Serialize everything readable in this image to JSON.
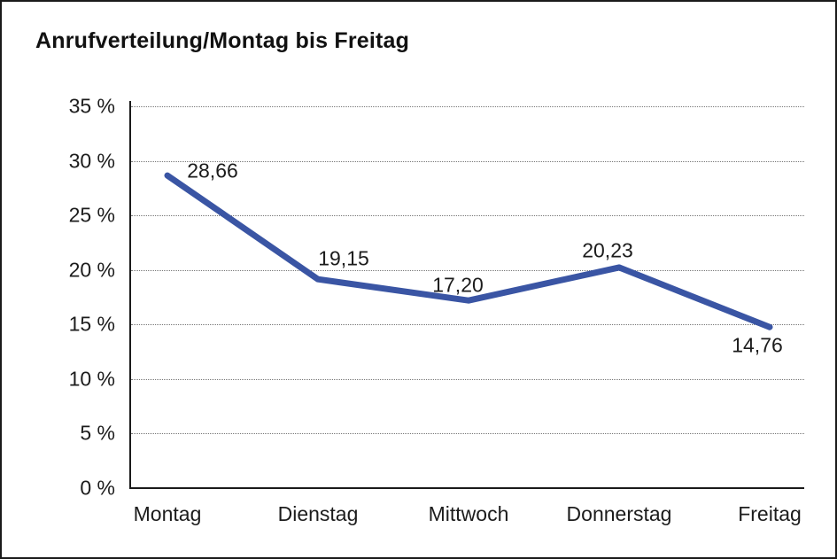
{
  "chart_data": {
    "type": "line",
    "title": "Anrufverteilung/Montag bis Freitag",
    "categories": [
      "Montag",
      "Dienstag",
      "Mittwoch",
      "Donnerstag",
      "Freitag"
    ],
    "series": [
      {
        "name": "Anrufverteilung",
        "values": [
          28.66,
          19.15,
          17.2,
          20.23,
          14.76
        ],
        "value_labels": [
          "28,66",
          "19,15",
          "17,20",
          "20,23",
          "14,76"
        ]
      }
    ],
    "xlabel": "",
    "ylabel": "",
    "ylim": [
      0,
      35
    ],
    "y_ticks": [
      {
        "label": "35 %",
        "value": 35
      },
      {
        "label": "30 %",
        "value": 30
      },
      {
        "label": "25 %",
        "value": 25
      },
      {
        "label": "20 %",
        "value": 20
      },
      {
        "label": "15 %",
        "value": 15
      },
      {
        "label": "10 %",
        "value": 10
      },
      {
        "label": "5 %",
        "value": 5
      },
      {
        "label": "0 %",
        "value": 0
      }
    ],
    "grid": "horizontal-dotted",
    "legend": "none",
    "line_color": "#3a55a4",
    "axis_color": "#1a1a1a",
    "gridline_color": "#777777",
    "text_color": "#1c1c1c",
    "background_color": "#ffffff"
  }
}
